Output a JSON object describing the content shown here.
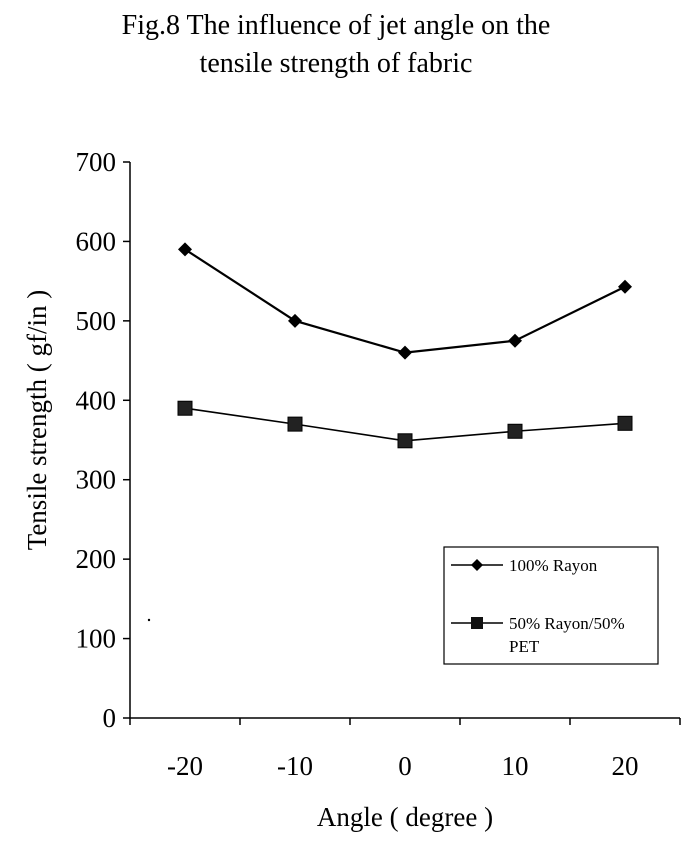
{
  "chart_data": {
    "type": "line",
    "title_line1": "Fig.8 The influence of jet angle on the",
    "title_line2": "tensile strength of fabric",
    "xlabel": "Angle ( degree )",
    "ylabel": "Tensile strength ( gf/in )",
    "categories": [
      "-20",
      "-10",
      "0",
      "10",
      "20"
    ],
    "y_ticks": [
      "0",
      "100",
      "200",
      "300",
      "400",
      "500",
      "600",
      "700"
    ],
    "ylim": [
      0,
      700
    ],
    "series": [
      {
        "name": "100% Rayon",
        "marker": "diamond",
        "values": [
          590,
          500,
          460,
          475,
          543
        ]
      },
      {
        "name_line1": "50% Rayon/50%",
        "name_line2": "PET",
        "marker": "square",
        "values": [
          390,
          370,
          349,
          361,
          371
        ]
      }
    ],
    "legend_position": "lower-right",
    "grid": false
  }
}
